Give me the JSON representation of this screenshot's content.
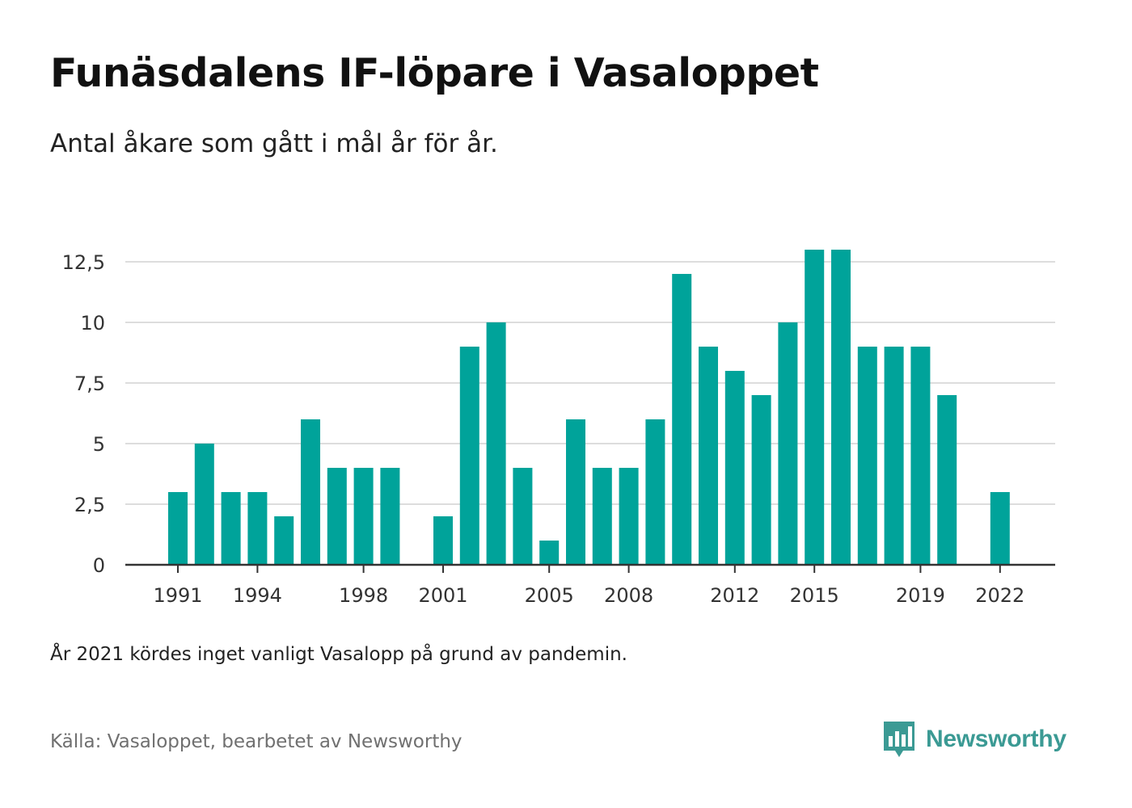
{
  "title": "Funäsdalens IF-löpare i Vasaloppet",
  "subtitle": "Antal åkare som gått i mål år för år.",
  "note": "År 2021 kördes inget vanligt Vasalopp på grund av pandemin.",
  "source": "Källa: Vasaloppet, bearbetet av Newsworthy",
  "brand": {
    "name": "Newsworthy",
    "icon": "newsworthy-logo-icon",
    "color": "#3b9a94"
  },
  "colors": {
    "bar": "#00a39a",
    "grid": "#dddddd",
    "axis": "#333333"
  },
  "chart_data": {
    "type": "bar",
    "title": "Funäsdalens IF-löpare i Vasaloppet",
    "subtitle": "Antal åkare som gått i mål år för år.",
    "xlabel": "",
    "ylabel": "",
    "ylim": [
      0,
      13.5
    ],
    "grid": true,
    "y_ticks": [
      0,
      2.5,
      5,
      7.5,
      10,
      12.5
    ],
    "y_tick_labels": [
      "0",
      "2,5",
      "5",
      "7,5",
      "10",
      "12,5"
    ],
    "x_tick_labels": [
      "1991",
      "1994",
      "1998",
      "2001",
      "2005",
      "2008",
      "2012",
      "2015",
      "2019",
      "2022"
    ],
    "categories": [
      1991,
      1992,
      1993,
      1994,
      1995,
      1996,
      1997,
      1998,
      1999,
      2000,
      2001,
      2002,
      2003,
      2004,
      2005,
      2006,
      2007,
      2008,
      2009,
      2010,
      2011,
      2012,
      2013,
      2014,
      2015,
      2016,
      2017,
      2018,
      2019,
      2020,
      2021,
      2022
    ],
    "values": [
      3,
      5,
      3,
      3,
      2,
      6,
      4,
      4,
      4,
      null,
      2,
      9,
      10,
      4,
      1,
      6,
      4,
      4,
      6,
      12,
      9,
      8,
      7,
      10,
      13,
      13,
      9,
      9,
      9,
      7,
      null,
      3
    ]
  }
}
